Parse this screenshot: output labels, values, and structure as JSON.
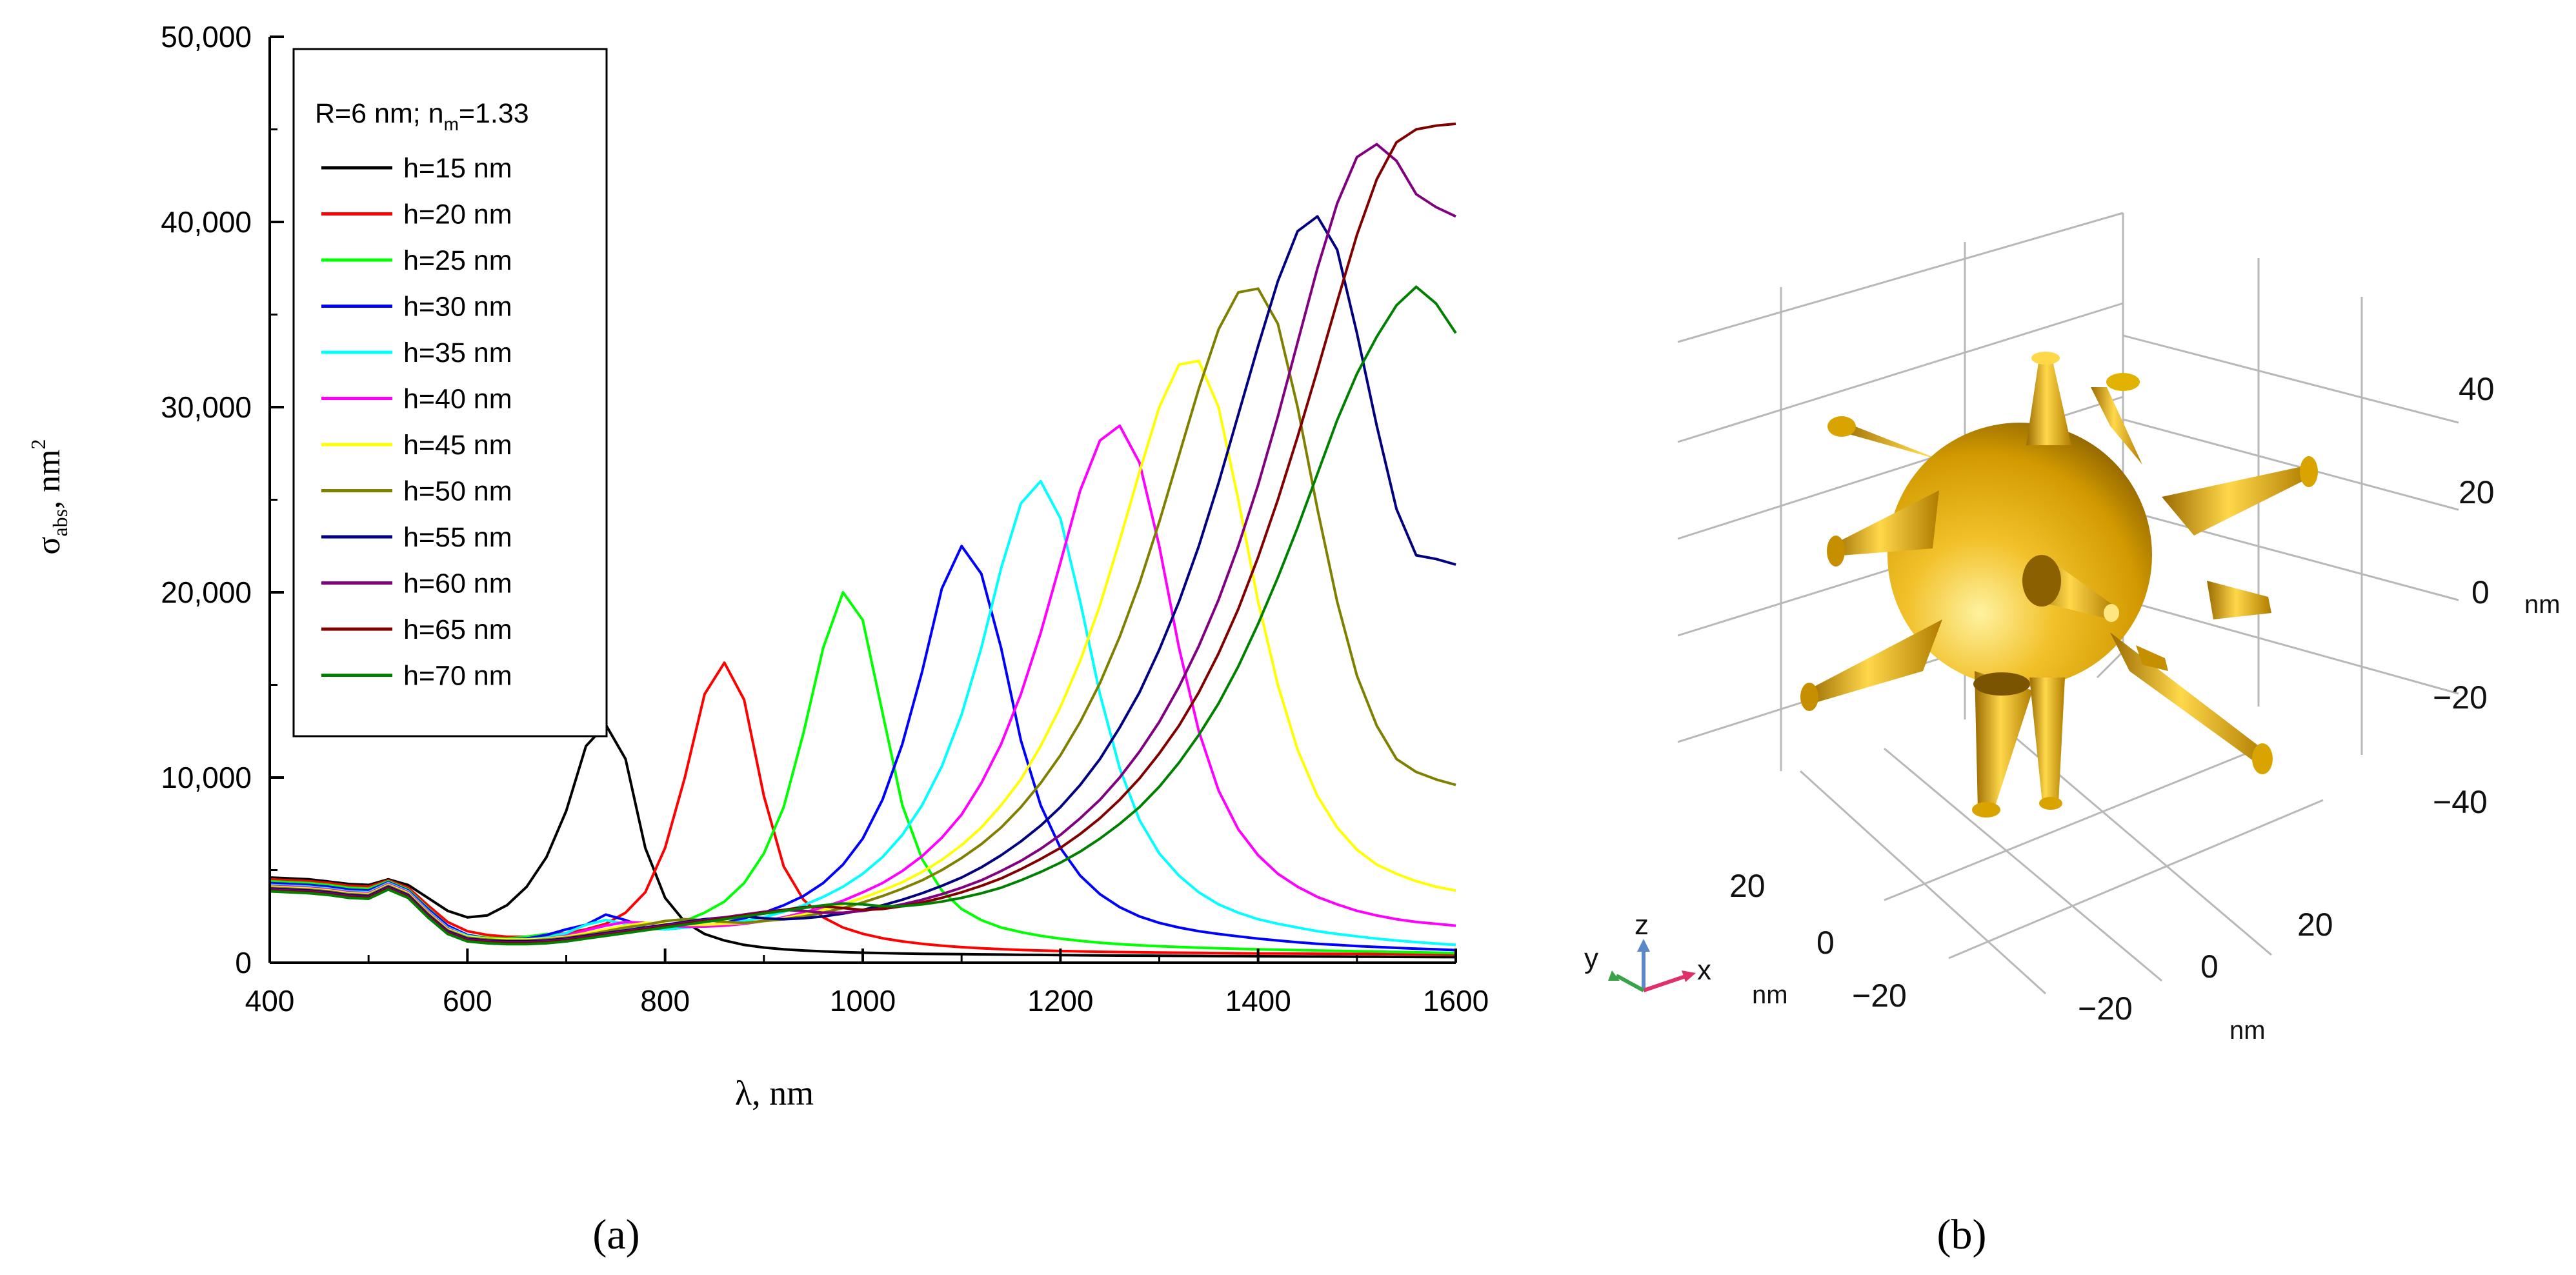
{
  "panel_a_label": "(a)",
  "panel_b_label": "(b)",
  "legend": {
    "title_main": "R=6 nm; n",
    "title_sub": "m",
    "title_end": "=1.33"
  },
  "axes": {
    "y_sym": "σ",
    "y_sub": "abs",
    "y_unit": ", nm",
    "y_sup": "2",
    "x_label": "λ, nm"
  },
  "chart_data": {
    "type": "line",
    "xlim": [
      400,
      1600
    ],
    "ylim": [
      0,
      50000
    ],
    "x_ticks": [
      400,
      600,
      800,
      1000,
      1200,
      1400,
      1600
    ],
    "x_tick_labels": [
      "400",
      "600",
      "800",
      "1000",
      "1200",
      "1400",
      "1600"
    ],
    "y_ticks": [
      0,
      10000,
      20000,
      30000,
      40000,
      50000
    ],
    "y_tick_labels": [
      "0",
      "10,000",
      "20,000",
      "30,000",
      "40,000",
      "50,000"
    ],
    "x_step": 20,
    "series": [
      {
        "name": "h=15 nm",
        "color": "#000000",
        "values": [
          4600,
          4550,
          4500,
          4380,
          4250,
          4200,
          4500,
          4200,
          3500,
          2800,
          2450,
          2550,
          3100,
          4100,
          5700,
          8200,
          11700,
          12850,
          11000,
          6200,
          3500,
          2200,
          1550,
          1200,
          960,
          820,
          720,
          660,
          610,
          570,
          540,
          520,
          500,
          480,
          470,
          460,
          450,
          440,
          430,
          420,
          410,
          400,
          390,
          385,
          380,
          375,
          370,
          365,
          360,
          355,
          350,
          345,
          340,
          335,
          330,
          325,
          320,
          315,
          310,
          305,
          300
        ]
      },
      {
        "name": "h=20 nm",
        "color": "#ff0000",
        "values": [
          4500,
          4450,
          4400,
          4300,
          4150,
          4100,
          4450,
          4050,
          3100,
          2200,
          1700,
          1500,
          1400,
          1400,
          1480,
          1600,
          1800,
          2100,
          2700,
          3800,
          6200,
          10000,
          14500,
          16200,
          14200,
          9000,
          5200,
          3400,
          2450,
          1900,
          1560,
          1320,
          1150,
          1020,
          920,
          840,
          780,
          730,
          690,
          660,
          630,
          610,
          590,
          575,
          560,
          550,
          540,
          530,
          520,
          510,
          500,
          495,
          490,
          485,
          480,
          475,
          470,
          465,
          460,
          455,
          450
        ]
      },
      {
        "name": "h=25 nm",
        "color": "#00ff00",
        "values": [
          4400,
          4350,
          4300,
          4200,
          4050,
          4000,
          4400,
          3950,
          2950,
          2000,
          1500,
          1350,
          1300,
          1400,
          1550,
          1500,
          1480,
          1500,
          1600,
          1750,
          1950,
          2250,
          2700,
          3300,
          4300,
          5900,
          8400,
          12400,
          17000,
          20000,
          18500,
          13500,
          8500,
          5600,
          3900,
          2900,
          2300,
          1900,
          1650,
          1450,
          1300,
          1180,
          1080,
          1000,
          940,
          890,
          850,
          810,
          780,
          750,
          720,
          700,
          680,
          660,
          640,
          620,
          600,
          580,
          560,
          540,
          520
        ]
      },
      {
        "name": "h=30 nm",
        "color": "#0000ff",
        "values": [
          4300,
          4250,
          4200,
          4100,
          3950,
          3900,
          4350,
          3900,
          2900,
          2000,
          1500,
          1300,
          1250,
          1300,
          1500,
          1800,
          2050,
          2600,
          2300,
          1900,
          1800,
          1900,
          2000,
          2150,
          2400,
          2700,
          3100,
          3600,
          4300,
          5300,
          6700,
          8800,
          11800,
          15700,
          20200,
          22500,
          21000,
          17000,
          12000,
          8500,
          6200,
          4700,
          3700,
          3000,
          2500,
          2150,
          1900,
          1700,
          1550,
          1420,
          1300,
          1200,
          1100,
          1020,
          960,
          900,
          850,
          800,
          760,
          720,
          680
        ]
      },
      {
        "name": "h=35 nm",
        "color": "#00ffff",
        "values": [
          4200,
          4150,
          4100,
          4000,
          3850,
          3800,
          4300,
          3850,
          2800,
          1900,
          1450,
          1300,
          1250,
          1250,
          1350,
          1600,
          2050,
          2300,
          2100,
          1850,
          1800,
          1900,
          2000,
          2100,
          2250,
          2450,
          2750,
          3100,
          3550,
          4100,
          4800,
          5700,
          6900,
          8500,
          10600,
          13400,
          17000,
          21300,
          24800,
          26000,
          24000,
          19500,
          14500,
          10500,
          7700,
          5900,
          4700,
          3800,
          3150,
          2700,
          2350,
          2100,
          1900,
          1700,
          1550,
          1420,
          1300,
          1200,
          1110,
          1030,
          960
        ]
      },
      {
        "name": "h=40 nm",
        "color": "#ff00ff",
        "values": [
          4150,
          4100,
          4050,
          3950,
          3800,
          3750,
          4250,
          3800,
          2750,
          1850,
          1400,
          1300,
          1250,
          1250,
          1300,
          1450,
          1750,
          2000,
          2200,
          2150,
          2000,
          1950,
          1950,
          2000,
          2100,
          2250,
          2450,
          2700,
          3000,
          3350,
          3800,
          4300,
          4950,
          5750,
          6750,
          8000,
          9700,
          11800,
          14500,
          17800,
          21600,
          25500,
          28200,
          29000,
          27000,
          22500,
          17000,
          12500,
          9300,
          7200,
          5800,
          4800,
          4100,
          3550,
          3150,
          2800,
          2550,
          2350,
          2200,
          2100,
          2000
        ]
      },
      {
        "name": "h=45 nm",
        "color": "#ffff00",
        "values": [
          4100,
          4050,
          4000,
          3900,
          3750,
          3700,
          4200,
          3750,
          2700,
          1800,
          1400,
          1300,
          1250,
          1250,
          1300,
          1400,
          1600,
          1800,
          2000,
          2150,
          2100,
          2050,
          2050,
          2100,
          2150,
          2250,
          2400,
          2600,
          2850,
          3150,
          3500,
          3900,
          4350,
          4900,
          5550,
          6350,
          7300,
          8500,
          9900,
          11700,
          13800,
          16300,
          19300,
          22800,
          26500,
          30000,
          32300,
          32500,
          30000,
          25000,
          19500,
          15000,
          11500,
          9000,
          7300,
          6100,
          5300,
          4800,
          4400,
          4100,
          3900
        ]
      },
      {
        "name": "h=50 nm",
        "color": "#808000",
        "values": [
          4050,
          4000,
          3950,
          3850,
          3700,
          3650,
          4150,
          3700,
          2650,
          1750,
          1350,
          1250,
          1200,
          1200,
          1250,
          1350,
          1500,
          1700,
          1900,
          2050,
          2250,
          2350,
          2300,
          2200,
          2150,
          2250,
          2350,
          2500,
          2700,
          2950,
          3250,
          3600,
          4000,
          4450,
          5000,
          5650,
          6400,
          7300,
          8400,
          9700,
          11200,
          13000,
          15100,
          17600,
          20500,
          23800,
          27400,
          31000,
          34200,
          36200,
          36400,
          34500,
          30000,
          24500,
          19500,
          15500,
          12800,
          11000,
          10300,
          9900,
          9600
        ]
      },
      {
        "name": "h=55 nm",
        "color": "#000080",
        "values": [
          4000,
          3950,
          3900,
          3800,
          3650,
          3600,
          4100,
          3650,
          2600,
          1700,
          1300,
          1200,
          1150,
          1150,
          1200,
          1300,
          1450,
          1600,
          1750,
          1900,
          2050,
          2200,
          2350,
          2450,
          2500,
          2400,
          2350,
          2400,
          2500,
          2650,
          2850,
          3100,
          3400,
          3750,
          4150,
          4600,
          5150,
          5800,
          6550,
          7400,
          8400,
          9600,
          11000,
          12700,
          14600,
          16900,
          19500,
          22500,
          25900,
          29600,
          33300,
          36800,
          39500,
          40300,
          38500,
          34000,
          29000,
          24500,
          22000,
          21800,
          21500
        ]
      },
      {
        "name": "h=60 nm",
        "color": "#800080",
        "values": [
          3950,
          3900,
          3850,
          3750,
          3600,
          3550,
          4050,
          3600,
          2550,
          1650,
          1250,
          1150,
          1100,
          1100,
          1150,
          1250,
          1400,
          1550,
          1700,
          1850,
          2000,
          2150,
          2300,
          2450,
          2600,
          2750,
          2850,
          2800,
          2700,
          2700,
          2800,
          2950,
          3150,
          3400,
          3700,
          4050,
          4450,
          4950,
          5500,
          6150,
          6900,
          7800,
          8800,
          10000,
          11400,
          13000,
          14900,
          17100,
          19600,
          22500,
          25800,
          29500,
          33500,
          37500,
          41000,
          43500,
          44200,
          43300,
          41500,
          40800,
          40300
        ]
      },
      {
        "name": "h=65 nm",
        "color": "#800000",
        "values": [
          3900,
          3850,
          3800,
          3700,
          3550,
          3500,
          4000,
          3550,
          2500,
          1600,
          1200,
          1100,
          1050,
          1050,
          1100,
          1200,
          1350,
          1500,
          1650,
          1800,
          1950,
          2100,
          2250,
          2400,
          2550,
          2700,
          2850,
          3000,
          3050,
          2950,
          2850,
          2900,
          3050,
          3250,
          3500,
          3800,
          4150,
          4550,
          5050,
          5600,
          6200,
          6950,
          7800,
          8800,
          9950,
          11300,
          12800,
          14600,
          16700,
          19100,
          21900,
          25000,
          28400,
          32000,
          35700,
          39300,
          42300,
          44300,
          45000,
          45200,
          45300
        ]
      },
      {
        "name": "h=70 nm",
        "color": "#008000",
        "values": [
          3850,
          3800,
          3750,
          3650,
          3500,
          3450,
          3950,
          3500,
          2450,
          1550,
          1150,
          1050,
          1000,
          1000,
          1050,
          1150,
          1300,
          1450,
          1600,
          1750,
          1900,
          2050,
          2200,
          2350,
          2500,
          2650,
          2800,
          2950,
          3100,
          3200,
          3150,
          3050,
          3050,
          3150,
          3300,
          3500,
          3750,
          4050,
          4450,
          4900,
          5400,
          6000,
          6700,
          7500,
          8400,
          9500,
          10800,
          12300,
          14000,
          16000,
          18300,
          20800,
          23500,
          26400,
          29300,
          31800,
          33800,
          35500,
          36500,
          35600,
          34000
        ]
      }
    ]
  },
  "panel_b": {
    "z_ticks": [
      "40",
      "20",
      "0",
      "−20",
      "−40"
    ],
    "z_unit": "nm",
    "x_ticks": [
      "20",
      "0",
      "−20"
    ],
    "x_unit": "nm",
    "y_ticks": [
      "20",
      "0",
      "−20"
    ],
    "y_unit": "nm",
    "triad": {
      "x": "x",
      "y": "y",
      "z": "z"
    },
    "colors": {
      "gold_light": "#ffe680",
      "gold": "#e0a800",
      "gold_dark": "#8a6000",
      "grid": "#b8b8b8"
    }
  }
}
